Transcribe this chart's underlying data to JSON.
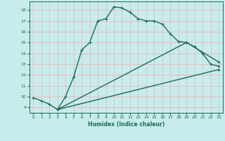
{
  "xlabel": "Humidex (Indice chaleur)",
  "bg_color": "#c8ecec",
  "grid_color": "#e8b8b8",
  "line_color": "#1a6b5a",
  "xlim": [
    -0.5,
    23.5
  ],
  "ylim": [
    8.5,
    18.8
  ],
  "xticks": [
    0,
    1,
    2,
    3,
    4,
    5,
    6,
    7,
    8,
    9,
    10,
    11,
    12,
    13,
    14,
    15,
    16,
    17,
    18,
    19,
    20,
    21,
    22,
    23
  ],
  "yticks": [
    9,
    10,
    11,
    12,
    13,
    14,
    15,
    16,
    17,
    18
  ],
  "curve1_x": [
    0,
    1,
    2,
    3,
    4,
    5,
    6,
    7,
    8,
    9,
    10,
    11,
    12,
    13,
    14,
    15,
    16,
    17,
    18,
    19,
    20,
    21,
    22,
    23
  ],
  "curve1_y": [
    9.9,
    9.6,
    9.3,
    8.8,
    10.0,
    11.8,
    14.3,
    15.0,
    17.0,
    17.2,
    18.3,
    18.2,
    17.8,
    17.2,
    17.0,
    17.0,
    16.7,
    15.8,
    15.1,
    15.0,
    14.6,
    14.0,
    13.0,
    12.8
  ],
  "curve2_x": [
    3,
    23
  ],
  "curve2_y": [
    8.8,
    12.5
  ],
  "curve3_x": [
    3,
    19,
    23
  ],
  "curve3_y": [
    8.8,
    15.0,
    13.2
  ],
  "marker_size": 2.5,
  "linewidth": 1.0
}
